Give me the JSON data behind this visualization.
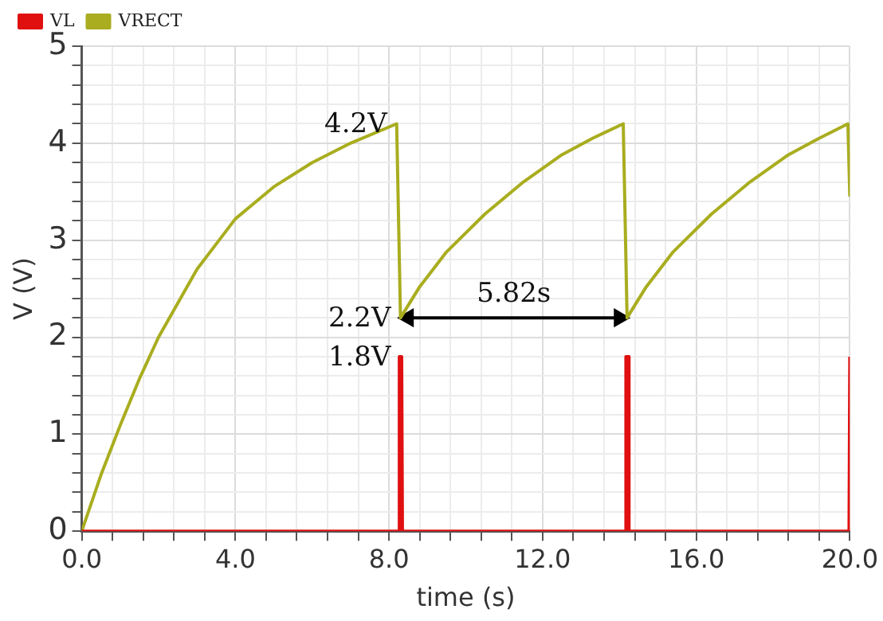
{
  "chart_data": {
    "type": "line",
    "xlabel": "time (s)",
    "ylabel": "V (V)",
    "xlim": [
      0,
      20
    ],
    "ylim": [
      0,
      5
    ],
    "xticks": [
      {
        "value": 0,
        "label": "0.0"
      },
      {
        "value": 0.8,
        "label": null
      },
      {
        "value": 1.6,
        "label": null
      },
      {
        "value": 2.4,
        "label": null
      },
      {
        "value": 3.2,
        "label": null
      },
      {
        "value": 4,
        "label": "4.0"
      },
      {
        "value": 4.8,
        "label": null
      },
      {
        "value": 5.6,
        "label": null
      },
      {
        "value": 6.4,
        "label": null
      },
      {
        "value": 7.2,
        "label": null
      },
      {
        "value": 8,
        "label": "8.0"
      },
      {
        "value": 8.8,
        "label": null
      },
      {
        "value": 9.6,
        "label": null
      },
      {
        "value": 10.4,
        "label": null
      },
      {
        "value": 11.2,
        "label": null
      },
      {
        "value": 12,
        "label": "12.0"
      },
      {
        "value": 12.8,
        "label": null
      },
      {
        "value": 13.6,
        "label": null
      },
      {
        "value": 14.4,
        "label": null
      },
      {
        "value": 15.2,
        "label": null
      },
      {
        "value": 16,
        "label": "16.0"
      },
      {
        "value": 16.8,
        "label": null
      },
      {
        "value": 17.6,
        "label": null
      },
      {
        "value": 18.4,
        "label": null
      },
      {
        "value": 19.2,
        "label": null
      },
      {
        "value": 20,
        "label": "20.0"
      }
    ],
    "yticks": [
      0,
      {
        "value": 0.2,
        "label": null
      },
      {
        "value": 0.4,
        "label": null
      },
      {
        "value": 0.6,
        "label": null
      },
      {
        "value": 0.8,
        "label": null
      },
      1,
      {
        "value": 1.2,
        "label": null
      },
      {
        "value": 1.4,
        "label": null
      },
      {
        "value": 1.6,
        "label": null
      },
      {
        "value": 1.8,
        "label": null
      },
      2,
      {
        "value": 2.2,
        "label": null
      },
      {
        "value": 2.4,
        "label": null
      },
      {
        "value": 2.6,
        "label": null
      },
      {
        "value": 2.8,
        "label": null
      },
      3,
      {
        "value": 3.2,
        "label": null
      },
      {
        "value": 3.4,
        "label": null
      },
      {
        "value": 3.6,
        "label": null
      },
      {
        "value": 3.8,
        "label": null
      },
      4,
      {
        "value": 4.2,
        "label": null
      },
      {
        "value": 4.4,
        "label": null
      },
      {
        "value": 4.6,
        "label": null
      },
      {
        "value": 4.8,
        "label": null
      },
      5
    ],
    "grid": true,
    "legend": "top left",
    "marker": "none",
    "line_style": "solid",
    "series": [
      {
        "name": "VL",
        "color": "#e01010",
        "x": [
          0,
          8.25,
          8.27,
          8.33,
          8.35,
          14.15,
          14.17,
          14.23,
          14.25,
          19.98,
          20
        ],
        "values": [
          0,
          0,
          1.8,
          1.8,
          0,
          0,
          1.8,
          1.8,
          0,
          0,
          1.8
        ]
      },
      {
        "name": "VRECT",
        "color": "#a9ad1f",
        "x": [
          0,
          0.5,
          1,
          1.5,
          2,
          3,
          4,
          5,
          6,
          7,
          8.2,
          8.3,
          8.8,
          9.5,
          10.5,
          11.5,
          12.5,
          13.3,
          14.1,
          14.2,
          14.7,
          15.4,
          16.4,
          17.4,
          18.4,
          19.2,
          19.95,
          20
        ],
        "values": [
          0,
          0.58,
          1.09,
          1.57,
          2,
          2.7,
          3.22,
          3.55,
          3.8,
          4,
          4.2,
          2.2,
          2.52,
          2.88,
          3.27,
          3.6,
          3.88,
          4.05,
          4.2,
          2.2,
          2.52,
          2.88,
          3.27,
          3.6,
          3.88,
          4.05,
          4.2,
          3.45
        ]
      },
      {
        "color": "#000000",
        "marker": "triangle",
        "x": [
          8.5,
          14
        ],
        "values": [
          2.2,
          2.2
        ]
      }
    ],
    "annotations": [
      {
        "text": "4.2V",
        "x": 8.2,
        "y": 4.2
      },
      {
        "text": "2.2V",
        "x": 8.3,
        "y": 2.2
      },
      {
        "text": "1.8V",
        "x": 8.3,
        "y": 1.8
      },
      {
        "text": "5.82s",
        "x": 11.25,
        "y": 2.2
      }
    ]
  }
}
